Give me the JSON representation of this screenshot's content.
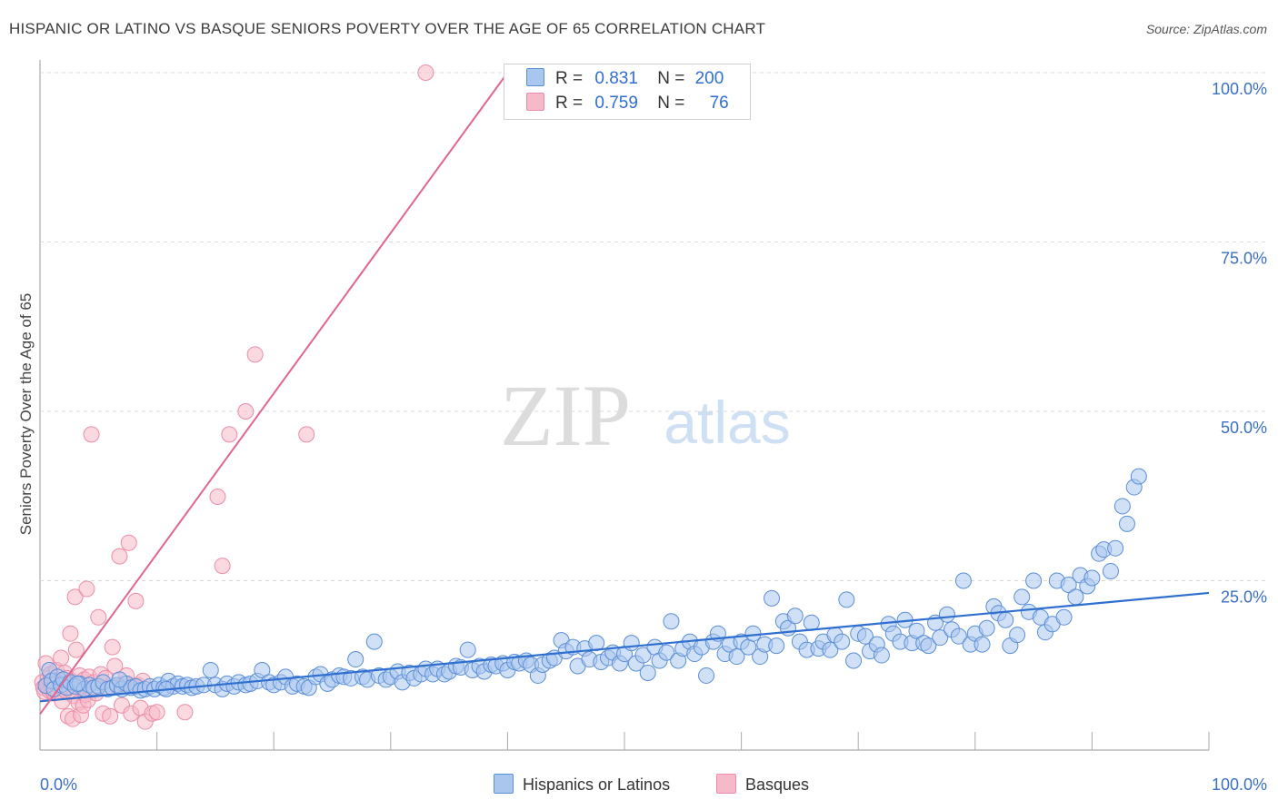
{
  "header": {
    "title": "HISPANIC OR LATINO VS BASQUE SENIORS POVERTY OVER THE AGE OF 65 CORRELATION CHART",
    "source": "Source: ZipAtlas.com"
  },
  "watermark": {
    "zip": "ZIP",
    "atlas": "atlas"
  },
  "colors": {
    "blue_fill": "#a9c6ef",
    "blue_stroke": "#5b8ed8",
    "blue_line": "#2f6fd0",
    "pink_fill": "#f6b9c9",
    "pink_stroke": "#ee8ca8",
    "pink_line": "#e0668f",
    "tick_text": "#3a6fc4",
    "grid": "#d9d9d9"
  },
  "legend": {
    "rows": [
      {
        "r_label": "R =",
        "r_value": "0.831",
        "n_label": "N =",
        "n_value": "200"
      },
      {
        "r_label": "R =",
        "r_value": "0.759",
        "n_label": "N =",
        "n_value": "76"
      }
    ]
  },
  "bottom_legend": {
    "series1": "Hispanics or Latinos",
    "series2": "Basques"
  },
  "chart_data": {
    "type": "scatter",
    "title": "HISPANIC OR LATINO VS BASQUE SENIORS POVERTY OVER THE AGE OF 65 CORRELATION CHART",
    "xlabel": "",
    "ylabel": "Seniors Poverty Over the Age of 65",
    "xlim": [
      0,
      100
    ],
    "ylim": [
      0,
      100
    ],
    "x_tick_labels": [
      "0.0%",
      "100.0%"
    ],
    "y_tick_labels": [
      "100.0%",
      "75.0%",
      "50.0%",
      "25.0%"
    ],
    "y_ticks": [
      100,
      75,
      50,
      25
    ],
    "grid": "dashed horizontal",
    "legend_position": "top-center",
    "series": [
      {
        "name": "Hispanics or Latinos",
        "R": 0.831,
        "N": 200,
        "trendline": {
          "x": [
            0,
            100
          ],
          "y": [
            7.2,
            23.2
          ]
        },
        "points": [
          [
            0.5,
            9.5
          ],
          [
            0.8,
            11.8
          ],
          [
            1.0,
            10.2
          ],
          [
            1.2,
            9.0
          ],
          [
            1.5,
            10.8
          ],
          [
            1.8,
            9.6
          ],
          [
            2.0,
            10.4
          ],
          [
            2.3,
            9.2
          ],
          [
            2.6,
            10.0
          ],
          [
            3.0,
            9.4
          ],
          [
            3.4,
            9.8
          ],
          [
            3.8,
            9.0
          ],
          [
            4.2,
            9.6
          ],
          [
            4.6,
            9.2
          ],
          [
            5.0,
            9.4
          ],
          [
            5.4,
            10.0
          ],
          [
            5.8,
            9.0
          ],
          [
            6.2,
            9.2
          ],
          [
            6.6,
            9.6
          ],
          [
            7.0,
            9.0
          ],
          [
            7.4,
            9.8
          ],
          [
            7.8,
            9.2
          ],
          [
            8.2,
            9.4
          ],
          [
            8.6,
            8.8
          ],
          [
            9.0,
            9.0
          ],
          [
            9.4,
            9.4
          ],
          [
            9.8,
            9.0
          ],
          [
            10.2,
            9.6
          ],
          [
            10.6,
            9.2
          ],
          [
            11.0,
            10.2
          ],
          [
            11.4,
            9.4
          ],
          [
            11.8,
            9.8
          ],
          [
            12.2,
            9.4
          ],
          [
            12.6,
            9.6
          ],
          [
            13.0,
            9.2
          ],
          [
            13.4,
            9.4
          ],
          [
            14.0,
            9.6
          ],
          [
            14.6,
            11.8
          ],
          [
            15.0,
            9.6
          ],
          [
            15.6,
            9.0
          ],
          [
            16.0,
            9.8
          ],
          [
            16.6,
            9.4
          ],
          [
            17.0,
            10.0
          ],
          [
            17.6,
            9.6
          ],
          [
            18.0,
            9.8
          ],
          [
            18.6,
            10.2
          ],
          [
            19.0,
            11.8
          ],
          [
            19.6,
            10.0
          ],
          [
            20.0,
            9.6
          ],
          [
            20.6,
            10.0
          ],
          [
            21.0,
            10.8
          ],
          [
            21.6,
            9.4
          ],
          [
            22.0,
            9.8
          ],
          [
            22.6,
            9.4
          ],
          [
            23.0,
            9.2
          ],
          [
            23.6,
            10.8
          ],
          [
            24.0,
            11.2
          ],
          [
            24.6,
            9.8
          ],
          [
            25.0,
            10.4
          ],
          [
            25.6,
            11.0
          ],
          [
            26.0,
            10.8
          ],
          [
            26.6,
            10.6
          ],
          [
            27.0,
            13.4
          ],
          [
            27.6,
            10.8
          ],
          [
            28.0,
            10.4
          ],
          [
            28.6,
            16.0
          ],
          [
            29.0,
            11.0
          ],
          [
            29.6,
            10.4
          ],
          [
            30.0,
            10.8
          ],
          [
            30.6,
            11.6
          ],
          [
            31.0,
            10.0
          ],
          [
            31.6,
            11.4
          ],
          [
            32.0,
            10.6
          ],
          [
            32.6,
            11.2
          ],
          [
            33.0,
            12.0
          ],
          [
            33.6,
            11.2
          ],
          [
            34.0,
            12.0
          ],
          [
            34.6,
            11.2
          ],
          [
            35.0,
            11.6
          ],
          [
            35.6,
            12.4
          ],
          [
            36.0,
            12.2
          ],
          [
            36.6,
            14.8
          ],
          [
            37.0,
            11.8
          ],
          [
            37.6,
            12.4
          ],
          [
            38.0,
            11.6
          ],
          [
            38.6,
            12.6
          ],
          [
            39.0,
            12.4
          ],
          [
            39.6,
            12.8
          ],
          [
            40.0,
            11.8
          ],
          [
            40.6,
            13.0
          ],
          [
            41.0,
            12.8
          ],
          [
            41.6,
            13.2
          ],
          [
            42.0,
            12.6
          ],
          [
            42.6,
            11.0
          ],
          [
            43.0,
            12.6
          ],
          [
            43.6,
            13.2
          ],
          [
            44.0,
            13.6
          ],
          [
            44.6,
            16.2
          ],
          [
            45.0,
            14.6
          ],
          [
            45.6,
            15.2
          ],
          [
            46.0,
            12.4
          ],
          [
            46.6,
            15.0
          ],
          [
            47.0,
            13.4
          ],
          [
            47.6,
            15.8
          ],
          [
            48.0,
            13.0
          ],
          [
            48.6,
            13.6
          ],
          [
            49.0,
            14.4
          ],
          [
            49.6,
            12.8
          ],
          [
            50.0,
            14.2
          ],
          [
            50.6,
            15.8
          ],
          [
            51.0,
            12.8
          ],
          [
            51.6,
            14.0
          ],
          [
            52.0,
            11.4
          ],
          [
            52.6,
            15.2
          ],
          [
            53.0,
            13.2
          ],
          [
            53.6,
            14.4
          ],
          [
            54.0,
            19.0
          ],
          [
            54.6,
            13.2
          ],
          [
            55.0,
            15.0
          ],
          [
            55.6,
            16.0
          ],
          [
            56.0,
            14.2
          ],
          [
            56.6,
            15.2
          ],
          [
            57.0,
            11.0
          ],
          [
            57.6,
            16.0
          ],
          [
            58.0,
            17.2
          ],
          [
            58.6,
            14.2
          ],
          [
            59.0,
            15.6
          ],
          [
            59.6,
            13.8
          ],
          [
            60.0,
            16.0
          ],
          [
            60.6,
            15.2
          ],
          [
            61.0,
            17.2
          ],
          [
            61.6,
            13.8
          ],
          [
            62.0,
            15.6
          ],
          [
            62.6,
            22.4
          ],
          [
            63.0,
            15.4
          ],
          [
            63.6,
            19.0
          ],
          [
            64.0,
            18.0
          ],
          [
            64.6,
            19.8
          ],
          [
            65.0,
            16.0
          ],
          [
            65.6,
            14.8
          ],
          [
            66.0,
            18.8
          ],
          [
            66.6,
            15.0
          ],
          [
            67.0,
            16.0
          ],
          [
            67.6,
            14.8
          ],
          [
            68.0,
            17.0
          ],
          [
            68.6,
            16.0
          ],
          [
            69.0,
            22.2
          ],
          [
            69.6,
            13.2
          ],
          [
            70.0,
            17.2
          ],
          [
            70.6,
            16.8
          ],
          [
            71.0,
            14.6
          ],
          [
            71.6,
            15.6
          ],
          [
            72.0,
            14.0
          ],
          [
            72.6,
            18.6
          ],
          [
            73.0,
            17.2
          ],
          [
            73.6,
            16.0
          ],
          [
            74.0,
            19.2
          ],
          [
            74.6,
            15.8
          ],
          [
            75.0,
            17.6
          ],
          [
            75.6,
            15.8
          ],
          [
            76.0,
            15.4
          ],
          [
            76.6,
            18.8
          ],
          [
            77.0,
            16.6
          ],
          [
            77.6,
            20.0
          ],
          [
            78.0,
            17.8
          ],
          [
            78.6,
            16.8
          ],
          [
            79.0,
            25.0
          ],
          [
            79.6,
            15.6
          ],
          [
            80.0,
            17.2
          ],
          [
            80.6,
            15.6
          ],
          [
            81.0,
            18.0
          ],
          [
            81.6,
            21.2
          ],
          [
            82.0,
            20.2
          ],
          [
            82.6,
            19.2
          ],
          [
            83.0,
            15.4
          ],
          [
            83.6,
            17.0
          ],
          [
            84.0,
            22.6
          ],
          [
            84.6,
            20.4
          ],
          [
            85.0,
            25.0
          ],
          [
            85.6,
            19.6
          ],
          [
            86.0,
            17.4
          ],
          [
            86.6,
            18.6
          ],
          [
            87.0,
            25.0
          ],
          [
            87.6,
            19.6
          ],
          [
            88.0,
            24.4
          ],
          [
            88.6,
            22.6
          ],
          [
            89.0,
            25.8
          ],
          [
            89.6,
            24.2
          ],
          [
            90.0,
            25.4
          ],
          [
            90.6,
            29.0
          ],
          [
            91.0,
            29.6
          ],
          [
            91.6,
            26.4
          ],
          [
            92.0,
            29.8
          ],
          [
            92.6,
            36.0
          ],
          [
            93.0,
            33.4
          ],
          [
            93.6,
            38.8
          ],
          [
            94.0,
            40.4
          ],
          [
            3.2,
            9.8
          ],
          [
            6.8,
            10.4
          ],
          [
            10.8,
            9.0
          ]
        ]
      },
      {
        "name": "Basques",
        "R": 0.759,
        "N": 76,
        "trendline": {
          "x": [
            0,
            40
          ],
          "y": [
            5.3,
            100
          ]
        },
        "points": [
          [
            0.2,
            10.0
          ],
          [
            0.3,
            9.2
          ],
          [
            0.4,
            8.6
          ],
          [
            0.5,
            12.8
          ],
          [
            0.6,
            9.6
          ],
          [
            0.7,
            10.6
          ],
          [
            0.8,
            8.8
          ],
          [
            0.9,
            11.2
          ],
          [
            1.0,
            9.0
          ],
          [
            1.1,
            10.4
          ],
          [
            1.2,
            8.4
          ],
          [
            1.3,
            9.8
          ],
          [
            1.4,
            11.8
          ],
          [
            1.5,
            8.6
          ],
          [
            1.6,
            10.2
          ],
          [
            1.7,
            9.4
          ],
          [
            1.8,
            13.6
          ],
          [
            1.9,
            7.2
          ],
          [
            2.0,
            9.8
          ],
          [
            2.1,
            11.4
          ],
          [
            2.2,
            8.8
          ],
          [
            2.3,
            10.6
          ],
          [
            2.4,
            5.0
          ],
          [
            2.5,
            9.2
          ],
          [
            2.6,
            17.2
          ],
          [
            2.7,
            10.2
          ],
          [
            2.8,
            4.6
          ],
          [
            2.9,
            8.0
          ],
          [
            3.0,
            22.6
          ],
          [
            3.1,
            14.8
          ],
          [
            3.2,
            9.6
          ],
          [
            3.3,
            7.0
          ],
          [
            3.4,
            11.0
          ],
          [
            3.5,
            5.2
          ],
          [
            3.6,
            9.4
          ],
          [
            3.7,
            6.6
          ],
          [
            3.8,
            10.4
          ],
          [
            3.9,
            8.2
          ],
          [
            4.0,
            23.8
          ],
          [
            4.1,
            7.4
          ],
          [
            4.2,
            10.8
          ],
          [
            4.3,
            9.0
          ],
          [
            4.4,
            46.6
          ],
          [
            4.6,
            10.0
          ],
          [
            4.8,
            8.4
          ],
          [
            5.0,
            19.6
          ],
          [
            5.2,
            11.2
          ],
          [
            5.4,
            5.4
          ],
          [
            5.6,
            10.6
          ],
          [
            5.8,
            9.2
          ],
          [
            6.0,
            5.0
          ],
          [
            6.2,
            15.2
          ],
          [
            6.4,
            12.4
          ],
          [
            6.6,
            9.4
          ],
          [
            6.8,
            28.6
          ],
          [
            7.0,
            6.6
          ],
          [
            7.2,
            9.8
          ],
          [
            7.4,
            11.0
          ],
          [
            7.6,
            30.6
          ],
          [
            7.8,
            5.4
          ],
          [
            8.0,
            9.4
          ],
          [
            8.2,
            22.0
          ],
          [
            8.4,
            9.6
          ],
          [
            8.6,
            6.2
          ],
          [
            8.8,
            10.2
          ],
          [
            9.0,
            4.2
          ],
          [
            9.6,
            5.4
          ],
          [
            10.0,
            5.6
          ],
          [
            12.4,
            5.6
          ],
          [
            15.2,
            37.4
          ],
          [
            15.6,
            27.2
          ],
          [
            16.2,
            46.6
          ],
          [
            17.6,
            50.0
          ],
          [
            18.4,
            58.4
          ],
          [
            22.8,
            46.6
          ],
          [
            33.0,
            100.0
          ]
        ]
      }
    ]
  }
}
